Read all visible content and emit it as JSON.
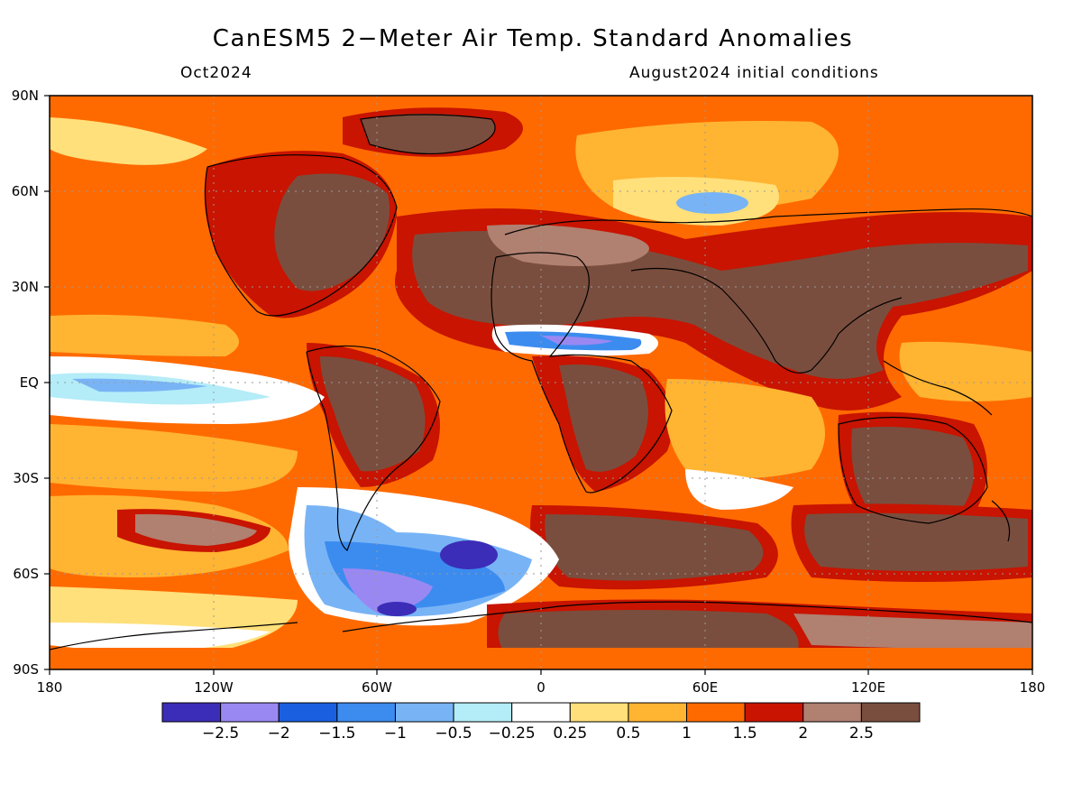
{
  "header": {
    "title": "CanESM5 2−Meter Air Temp. Standard Anomalies",
    "valid_month": "Oct2024",
    "init_conditions": "August2024 initial conditions"
  },
  "map": {
    "projection": "equirectangular",
    "lon_range": [
      -180,
      180
    ],
    "lat_range": [
      -90,
      90
    ],
    "lat_ticks": [
      {
        "value": 90,
        "label": "90N"
      },
      {
        "value": 60,
        "label": "60N"
      },
      {
        "value": 30,
        "label": "30N"
      },
      {
        "value": 0,
        "label": "EQ"
      },
      {
        "value": -30,
        "label": "30S"
      },
      {
        "value": -60,
        "label": "60S"
      },
      {
        "value": -90,
        "label": "90S"
      }
    ],
    "lon_ticks": [
      {
        "value": -180,
        "label": "180"
      },
      {
        "value": -120,
        "label": "120W"
      },
      {
        "value": -60,
        "label": "60W"
      },
      {
        "value": 0,
        "label": "0"
      },
      {
        "value": 60,
        "label": "60E"
      },
      {
        "value": 120,
        "label": "120E"
      },
      {
        "value": 180,
        "label": "180"
      }
    ],
    "colors": {
      "ocean_base": "#ff6a00",
      "land_high": "#7a4e3e",
      "grid": "#9a9a9a",
      "coast": "#000000"
    }
  },
  "colorbar": {
    "colors": [
      "#3c2db8",
      "#9a88f2",
      "#1a5fe0",
      "#3c8cf0",
      "#78b4f5",
      "#b4ecf8",
      "#ffffff",
      "#ffe07a",
      "#ffb432",
      "#ff6a00",
      "#c81400",
      "#b08070",
      "#7a4e3e"
    ],
    "labels": [
      "−2.5",
      "−2",
      "−1.5",
      "−1",
      "−0.5",
      "−0.25",
      "0.25",
      "0.5",
      "1",
      "1.5",
      "2",
      "2.5"
    ]
  }
}
